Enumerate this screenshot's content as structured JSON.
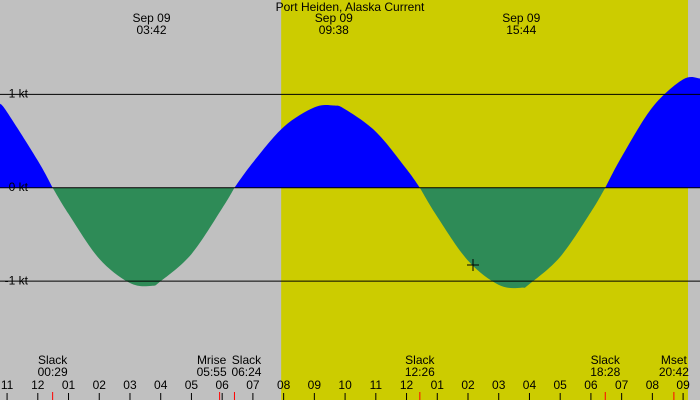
{
  "chart_data": {
    "type": "area",
    "title": "Port Heiden, Alaska Current",
    "background": "#c0c0c0",
    "shaded_ranges": [
      {
        "from": 7.92,
        "to": 21.16,
        "color": "#cccc00"
      }
    ],
    "colors": {
      "positive": "#0000ff",
      "negative": "#2e8b57"
    },
    "event_color": "#ff0000",
    "x": [
      -1.23,
      -1,
      0,
      0.483,
      1,
      2,
      3,
      3.7,
      4,
      5,
      6,
      6.4,
      7,
      8,
      9,
      9.633,
      10,
      11,
      12,
      12.433,
      13,
      14,
      15,
      15.733,
      16,
      17,
      18,
      18.467,
      19,
      20,
      21,
      21.55
    ],
    "values": [
      0.9,
      0.81,
      0.29,
      0,
      -0.28,
      -0.76,
      -1.02,
      -1.05,
      -1.0,
      -0.71,
      -0.22,
      0,
      0.27,
      0.65,
      0.86,
      0.88,
      0.84,
      0.6,
      0.2,
      0,
      -0.31,
      -0.78,
      -1.04,
      -1.07,
      -1.03,
      -0.74,
      -0.26,
      0,
      0.33,
      0.86,
      1.16,
      1.17
    ],
    "xlim": [
      -1.23,
      21.55
    ],
    "ylim": [
      -1.63,
      2.01
    ],
    "yticks": [
      {
        "value": 1,
        "label": "1 kt"
      },
      {
        "value": 0,
        "label": "0 kt"
      },
      {
        "value": -1,
        "label": "-1 kt"
      }
    ],
    "xticks": [
      {
        "value": -1,
        "label": "11"
      },
      {
        "value": 0,
        "label": "12"
      },
      {
        "value": 1,
        "label": "01"
      },
      {
        "value": 2,
        "label": "02"
      },
      {
        "value": 3,
        "label": "03"
      },
      {
        "value": 4,
        "label": "04"
      },
      {
        "value": 5,
        "label": "05"
      },
      {
        "value": 6,
        "label": "06"
      },
      {
        "value": 7,
        "label": "07"
      },
      {
        "value": 8,
        "label": "08"
      },
      {
        "value": 9,
        "label": "09"
      },
      10,
      11,
      12,
      {
        "value": 13,
        "label": "01"
      },
      {
        "value": 14,
        "label": "02"
      },
      {
        "value": 15,
        "label": "03"
      },
      {
        "value": 16,
        "label": "04"
      },
      {
        "value": 17,
        "label": "05"
      },
      {
        "value": 18,
        "label": "06"
      },
      {
        "value": 19,
        "label": "07"
      },
      {
        "value": 20,
        "label": "08"
      },
      {
        "value": 21,
        "label": "09"
      }
    ],
    "peaks": [
      {
        "date": "Sep 09",
        "time": "03:42",
        "x": 3.7
      },
      {
        "date": "Sep 09",
        "time": "09:38",
        "x": 9.633
      },
      {
        "date": "Sep 09",
        "time": "15:44",
        "x": 15.733
      }
    ],
    "events": [
      {
        "label": "Slack",
        "time": "00:29",
        "x": 0.483
      },
      {
        "label": "Mrise",
        "time": "05:55",
        "x": 5.917
      },
      {
        "label": "Slack",
        "time": "06:24",
        "x": 6.4
      },
      {
        "label": "Slack",
        "time": "12:26",
        "x": 12.433
      },
      {
        "label": "Slack",
        "time": "18:28",
        "x": 18.467
      },
      {
        "label": "Mset",
        "time": "20:42",
        "x": 20.7
      }
    ]
  }
}
